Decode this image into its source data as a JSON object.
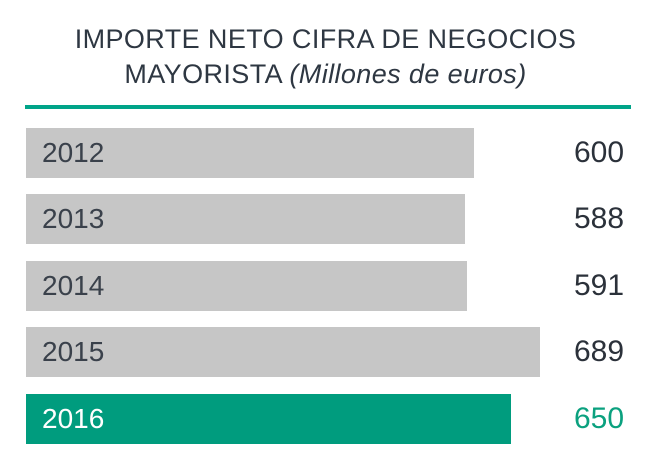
{
  "title": {
    "line1": "IMPORTE NETO CIFRA DE NEGOCIOS",
    "line2_regular": "MAYORISTA ",
    "line2_italic": "(Millones de euros)"
  },
  "colors": {
    "bar_gray": "#c6c6c6",
    "bar_green": "#009c7e",
    "value_green": "#0ba17f",
    "divider_teal": "#00a489",
    "text_dark": "#2e3742"
  },
  "chart_data": {
    "type": "bar",
    "orientation": "horizontal",
    "title": "IMPORTE NETO CIFRA DE NEGOCIOS MAYORISTA (Millones de euros)",
    "unit": "Millones de euros",
    "categories": [
      "2012",
      "2013",
      "2014",
      "2015",
      "2016"
    ],
    "values": [
      600,
      588,
      591,
      689,
      650
    ],
    "xlim": [
      0,
      689
    ],
    "highlight_index": 4,
    "highlight_category": "2016",
    "grid": false,
    "legend": false,
    "value_labels_position": "right-outside",
    "category_labels_position": "inside-left"
  }
}
